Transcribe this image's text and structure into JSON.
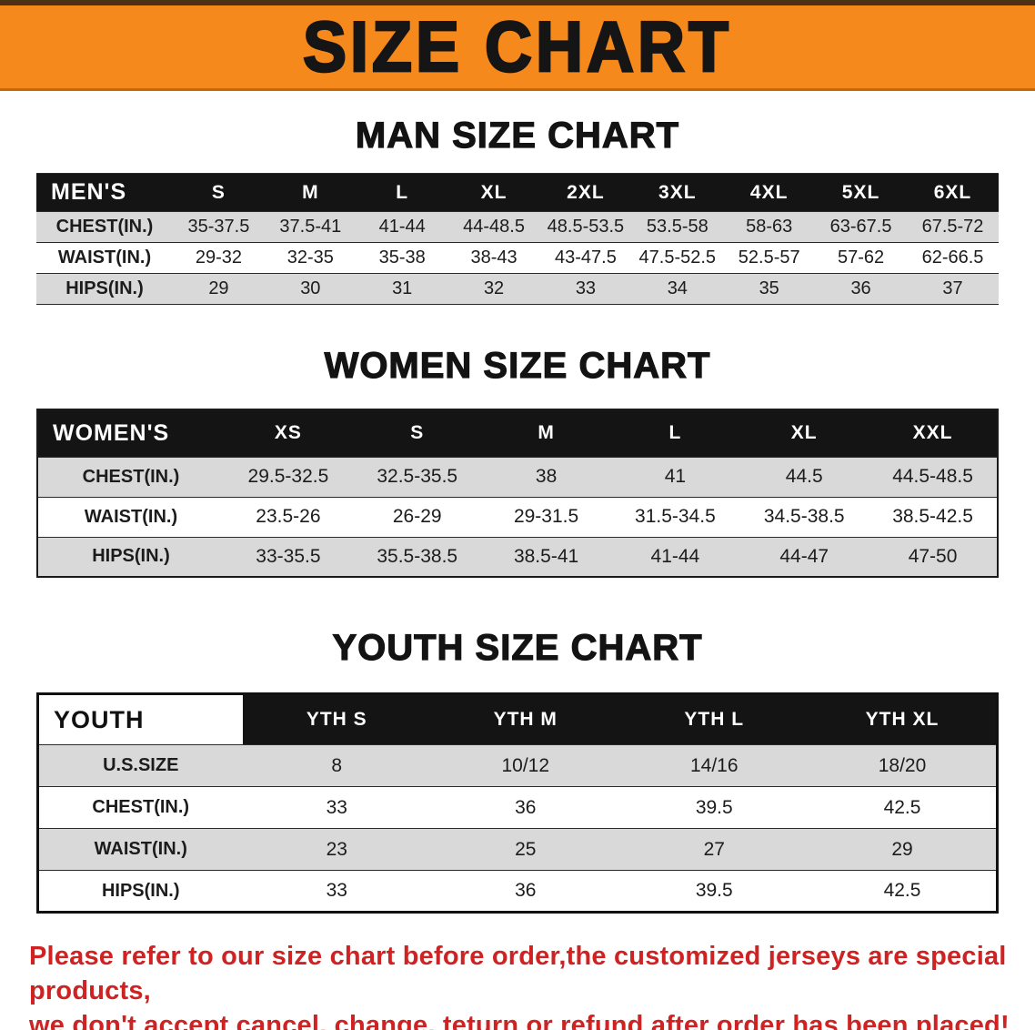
{
  "banner": {
    "title": "SIZE CHART"
  },
  "colors": {
    "banner_bg": "#f6891c",
    "banner_top_edge": "#4f3116",
    "table_header_bg": "#141414",
    "row_gray": "#d9d9d9",
    "disclaimer_red": "#cf2222"
  },
  "sections": {
    "men": {
      "heading": "MAN SIZE CHART",
      "table": {
        "header": [
          "MEN'S",
          "S",
          "M",
          "L",
          "XL",
          "2XL",
          "3XL",
          "4XL",
          "5XL",
          "6XL"
        ],
        "rows": [
          {
            "label": "CHEST(IN.)",
            "values": [
              "35-37.5",
              "37.5-41",
              "41-44",
              "44-48.5",
              "48.5-53.5",
              "53.5-58",
              "58-63",
              "63-67.5",
              "67.5-72"
            ]
          },
          {
            "label": "WAIST(IN.)",
            "values": [
              "29-32",
              "32-35",
              "35-38",
              "38-43",
              "43-47.5",
              "47.5-52.5",
              "52.5-57",
              "57-62",
              "62-66.5"
            ]
          },
          {
            "label": "HIPS(IN.)",
            "values": [
              "29",
              "30",
              "31",
              "32",
              "33",
              "34",
              "35",
              "36",
              "37"
            ]
          }
        ]
      }
    },
    "women": {
      "heading": "WOMEN SIZE CHART",
      "table": {
        "header": [
          "WOMEN'S",
          "XS",
          "S",
          "M",
          "L",
          "XL",
          "XXL"
        ],
        "rows": [
          {
            "label": "CHEST(IN.)",
            "values": [
              "29.5-32.5",
              "32.5-35.5",
              "38",
              "41",
              "44.5",
              "44.5-48.5"
            ]
          },
          {
            "label": "WAIST(IN.)",
            "values": [
              "23.5-26",
              "26-29",
              "29-31.5",
              "31.5-34.5",
              "34.5-38.5",
              "38.5-42.5"
            ]
          },
          {
            "label": "HIPS(IN.)",
            "values": [
              "33-35.5",
              "35.5-38.5",
              "38.5-41",
              "41-44",
              "44-47",
              "47-50"
            ]
          }
        ]
      }
    },
    "youth": {
      "heading": "YOUTH SIZE CHART",
      "table": {
        "label_on_white": true,
        "header": [
          "YOUTH",
          "YTH S",
          "YTH M",
          "YTH L",
          "YTH XL"
        ],
        "rows": [
          {
            "label": "U.S.SIZE",
            "values": [
              "8",
              "10/12",
              "14/16",
              "18/20"
            ]
          },
          {
            "label": "CHEST(IN.)",
            "values": [
              "33",
              "36",
              "39.5",
              "42.5"
            ]
          },
          {
            "label": "WAIST(IN.)",
            "values": [
              "23",
              "25",
              "27",
              "29"
            ]
          },
          {
            "label": "HIPS(IN.)",
            "values": [
              "33",
              "36",
              "39.5",
              "42.5"
            ]
          }
        ]
      }
    }
  },
  "disclaimer": {
    "line1": "Please refer to our size chart before order,the customized jerseys are special products,",
    "line2": "we don't accept cancel, change, teturn or refund after order has been placed!"
  }
}
